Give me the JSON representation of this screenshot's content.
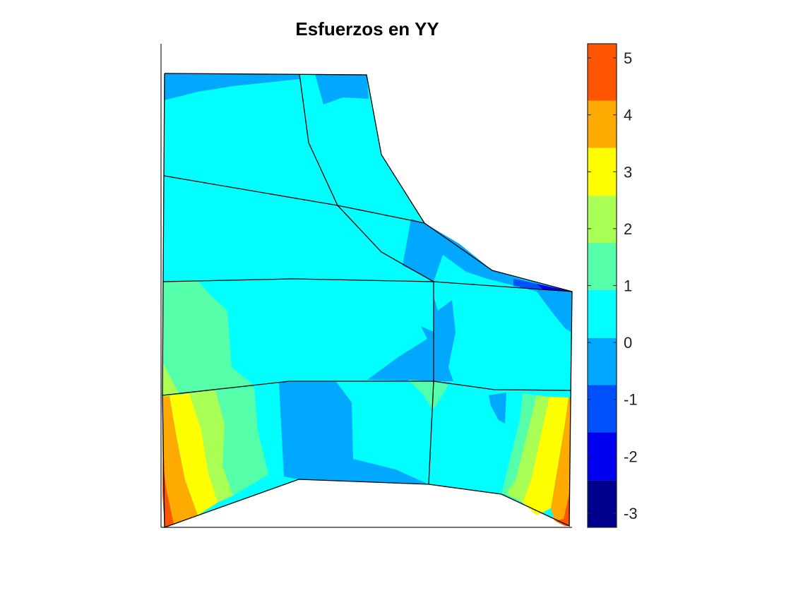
{
  "chart_data": {
    "type": "heatmap",
    "subtype": "filled-contour-on-mesh",
    "title": "Esfuerzos en YY",
    "xlabel": "",
    "ylabel": "",
    "colormap": "jet",
    "colorbar": {
      "location": "right",
      "clim": [
        -3.25,
        5.25
      ],
      "levels": [
        -3.25,
        -2.42,
        -1.58,
        -0.75,
        0.08,
        0.92,
        1.75,
        2.58,
        3.42,
        4.25,
        5.25
      ],
      "bands": [
        "#00008f",
        "#0000f0",
        "#0050ff",
        "#00a8ff",
        "#00ffff",
        "#55ffaa",
        "#aaff55",
        "#ffff00",
        "#ffaa00",
        "#ff5500"
      ],
      "tick_labels": [
        "5",
        "4",
        "3",
        "2",
        "1",
        "0",
        "-1",
        "-2",
        "-3"
      ],
      "tick_values": [
        5,
        4,
        3,
        2,
        1,
        0,
        -1,
        -2,
        -3
      ]
    },
    "mesh_elements": 9,
    "max_value": 5,
    "min_value": -3
  }
}
